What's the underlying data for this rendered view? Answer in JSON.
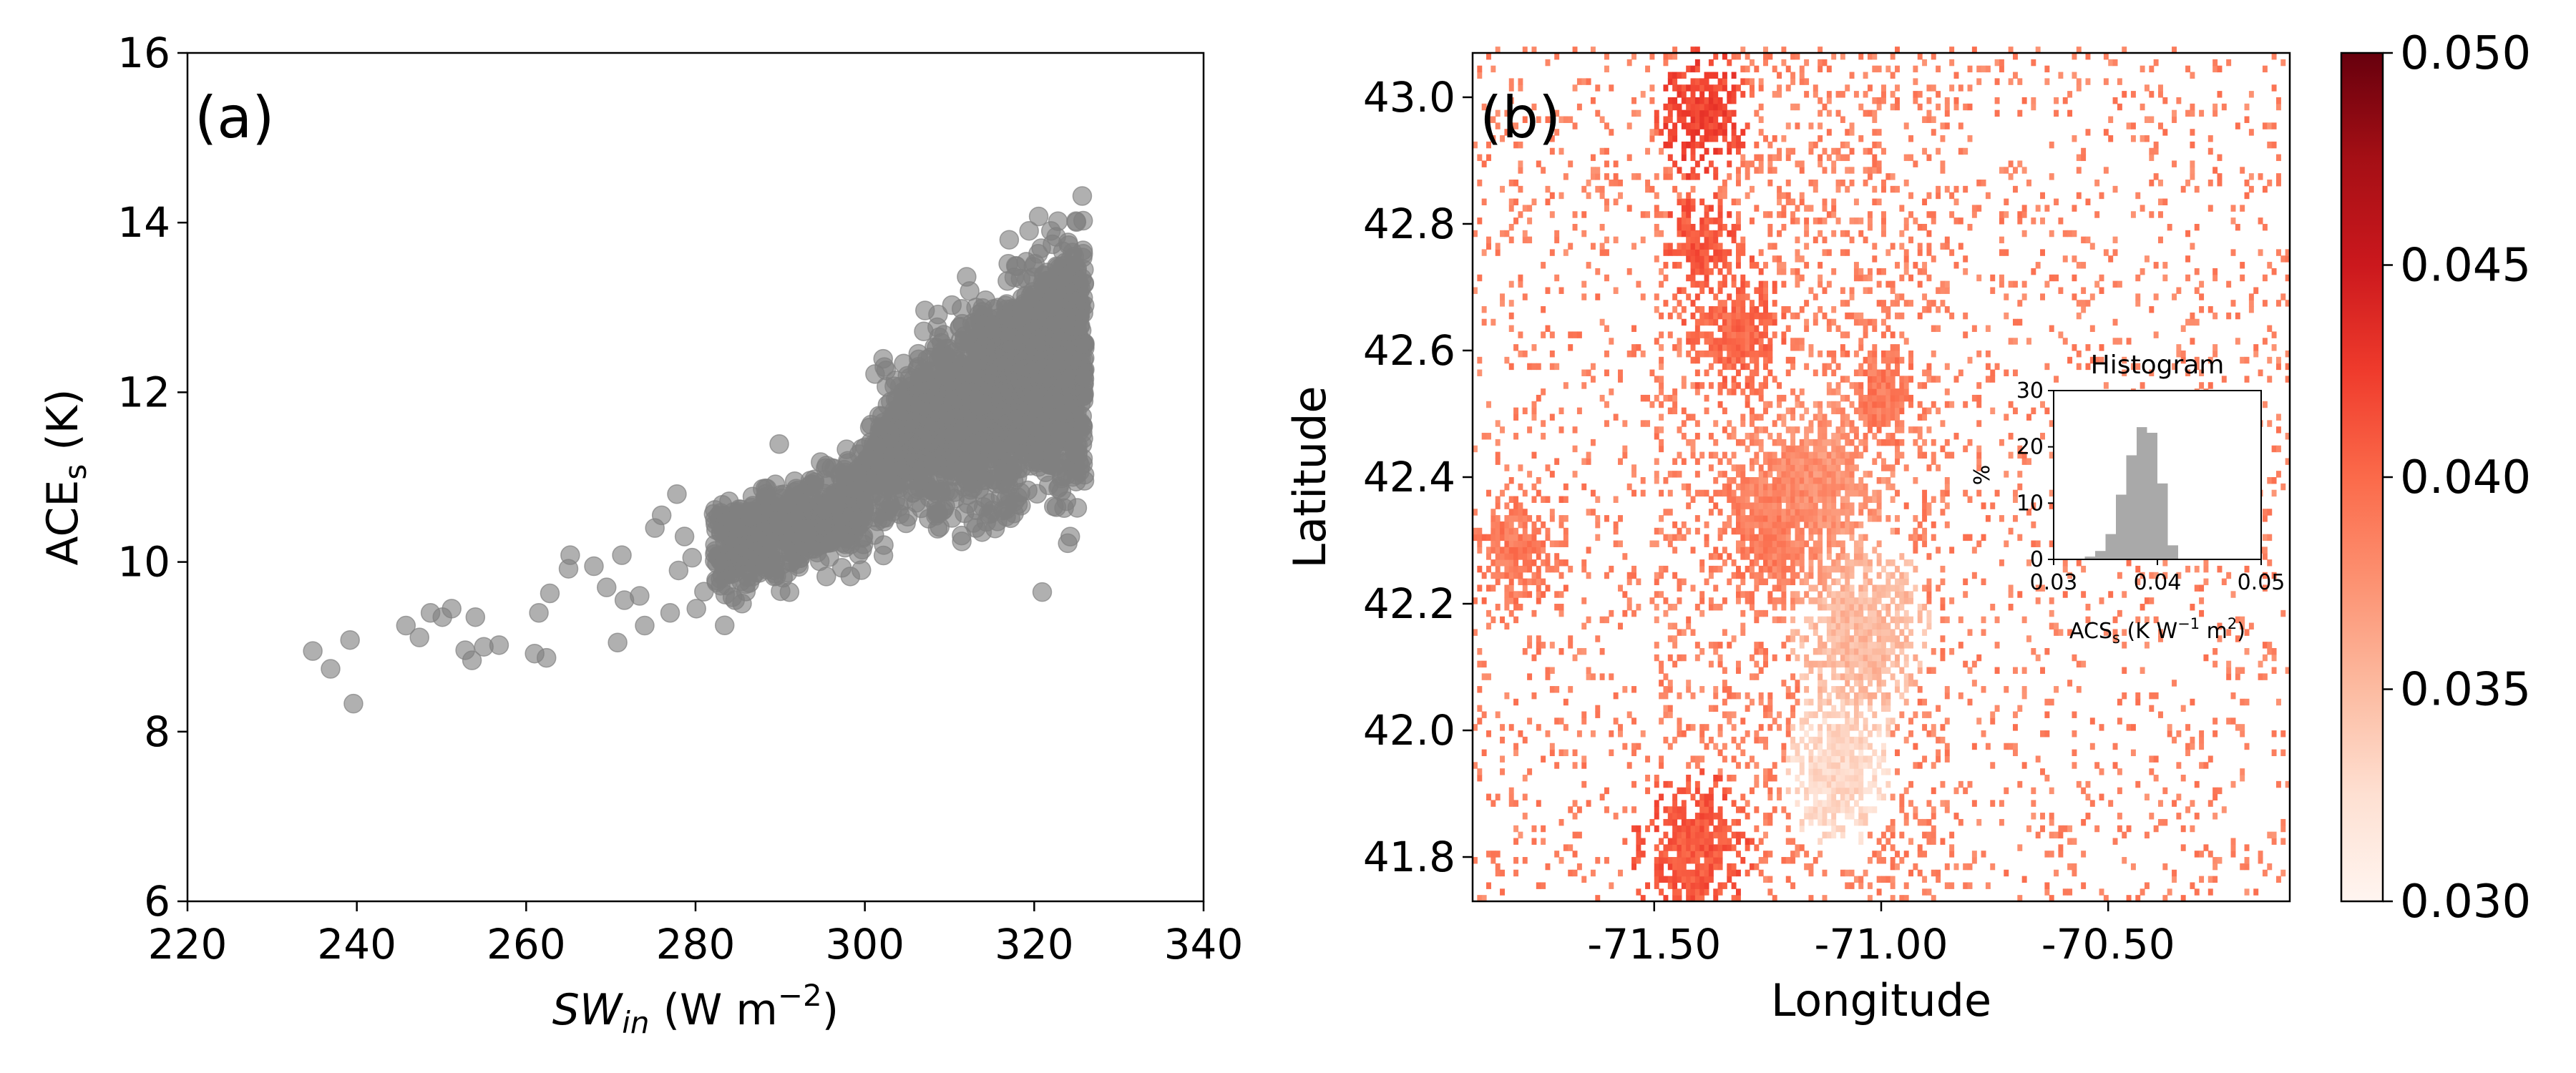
{
  "chart_data": [
    {
      "type": "scatter",
      "panel_label": "(a)",
      "xlabel_main": "SW",
      "xlabel_sub": "in",
      "xlabel_unit": " (W m",
      "xlabel_sup": "−2",
      "xlabel_close": ")",
      "ylabel_main": "ACE",
      "ylabel_sub": "s",
      "ylabel_unit": " (K)",
      "xlim": [
        220,
        340
      ],
      "ylim": [
        6,
        16
      ],
      "xticks": [
        220,
        240,
        260,
        280,
        300,
        320,
        340
      ],
      "yticks": [
        6,
        8,
        10,
        12,
        14,
        16
      ],
      "marker_color": "#808080",
      "cloud": {
        "point_count": 2600,
        "x_range": [
          280,
          326
        ],
        "y_at_x280": 10.2,
        "y_at_x325": 12.4
      },
      "outlier_points": [
        [
          234.8,
          8.95
        ],
        [
          236.9,
          8.74
        ],
        [
          239.2,
          9.08
        ],
        [
          239.6,
          8.33
        ],
        [
          245.8,
          9.25
        ],
        [
          247.4,
          9.11
        ],
        [
          248.7,
          9.4
        ],
        [
          250.1,
          9.35
        ],
        [
          251.2,
          9.45
        ],
        [
          252.8,
          8.96
        ],
        [
          254.0,
          9.35
        ],
        [
          253.6,
          8.84
        ],
        [
          255.0,
          9.0
        ],
        [
          256.8,
          9.02
        ],
        [
          261.0,
          8.92
        ],
        [
          262.4,
          8.87
        ],
        [
          261.5,
          9.4
        ],
        [
          262.8,
          9.63
        ],
        [
          265.2,
          10.08
        ],
        [
          265.0,
          9.92
        ],
        [
          268.0,
          9.95
        ],
        [
          269.5,
          9.7
        ],
        [
          270.8,
          9.05
        ],
        [
          271.6,
          9.55
        ],
        [
          271.3,
          10.08
        ],
        [
          273.4,
          9.6
        ],
        [
          274.0,
          9.25
        ],
        [
          275.2,
          10.4
        ],
        [
          276.0,
          10.55
        ],
        [
          277.0,
          9.4
        ],
        [
          278.0,
          9.9
        ],
        [
          278.7,
          10.3
        ],
        [
          277.8,
          10.8
        ],
        [
          279.6,
          10.05
        ],
        [
          280.1,
          9.45
        ],
        [
          281.0,
          9.65
        ]
      ]
    },
    {
      "type": "heatmap",
      "panel_label": "(b)",
      "xlabel": "Longitude",
      "ylabel": "Latitude",
      "xlim": [
        -71.9,
        -70.1
      ],
      "ylim": [
        41.73,
        43.07
      ],
      "xticks": [
        -71.5,
        -71.0,
        -70.5
      ],
      "xtick_labels": [
        "-71.50",
        "-71.00",
        "-70.50"
      ],
      "yticks": [
        41.8,
        42.0,
        42.2,
        42.4,
        42.6,
        42.8,
        43.0
      ],
      "ytick_labels": [
        "41.8",
        "42.0",
        "42.2",
        "42.4",
        "42.6",
        "42.8",
        "43.0"
      ],
      "colormap": "Reds",
      "color_low": "#fff5f0",
      "color_high": "#67000d",
      "value_range": [
        0.03,
        0.05
      ],
      "colorbar_ticks": [
        0.03,
        0.035,
        0.04,
        0.045,
        0.05
      ],
      "colorbar_tick_labels": [
        "0.030",
        "0.035",
        "0.040",
        "0.045",
        "0.050"
      ],
      "grid_resolution_deg": 0.01,
      "hotspots": [
        {
          "lon": -71.4,
          "lat": 42.97,
          "radius": 0.06,
          "value": 0.042
        },
        {
          "lon": -71.4,
          "lat": 42.76,
          "radius": 0.05,
          "value": 0.041
        },
        {
          "lon": -71.32,
          "lat": 42.62,
          "radius": 0.07,
          "value": 0.04
        },
        {
          "lon": -71.15,
          "lat": 42.38,
          "radius": 0.1,
          "value": 0.0375
        },
        {
          "lon": -71.8,
          "lat": 42.28,
          "radius": 0.07,
          "value": 0.039
        },
        {
          "lon": -71.42,
          "lat": 41.8,
          "radius": 0.08,
          "value": 0.041
        },
        {
          "lon": -71.25,
          "lat": 42.32,
          "radius": 0.08,
          "value": 0.039
        },
        {
          "lon": -71.0,
          "lat": 42.52,
          "radius": 0.06,
          "value": 0.039
        },
        {
          "lon": -71.05,
          "lat": 42.15,
          "radius": 0.09,
          "value": 0.035
        },
        {
          "lon": -71.1,
          "lat": 41.93,
          "radius": 0.07,
          "value": 0.033
        }
      ]
    },
    {
      "type": "bar",
      "title": "Histogram",
      "xlabel_main": "ACS",
      "xlabel_sub": "s",
      "xlabel_unit": " (K W",
      "xlabel_sup": "−1",
      "xlabel_unit2": " m",
      "xlabel_sup2": "2",
      "xlabel_close": ")",
      "ylabel": "%",
      "xlim": [
        0.03,
        0.05
      ],
      "ylim": [
        0,
        30
      ],
      "xticks": [
        0.03,
        0.04,
        0.05
      ],
      "xtick_labels": [
        "0.03",
        "0.04",
        "0.05"
      ],
      "yticks": [
        0,
        10,
        20,
        30
      ],
      "bar_color": "#a9a9a9",
      "bin_edges": [
        0.033,
        0.034,
        0.035,
        0.036,
        0.037,
        0.038,
        0.039,
        0.04,
        0.041,
        0.042
      ],
      "values": [
        0.5,
        1.5,
        4.5,
        11.5,
        18.5,
        23.5,
        22.5,
        13.5,
        2.5
      ]
    }
  ]
}
